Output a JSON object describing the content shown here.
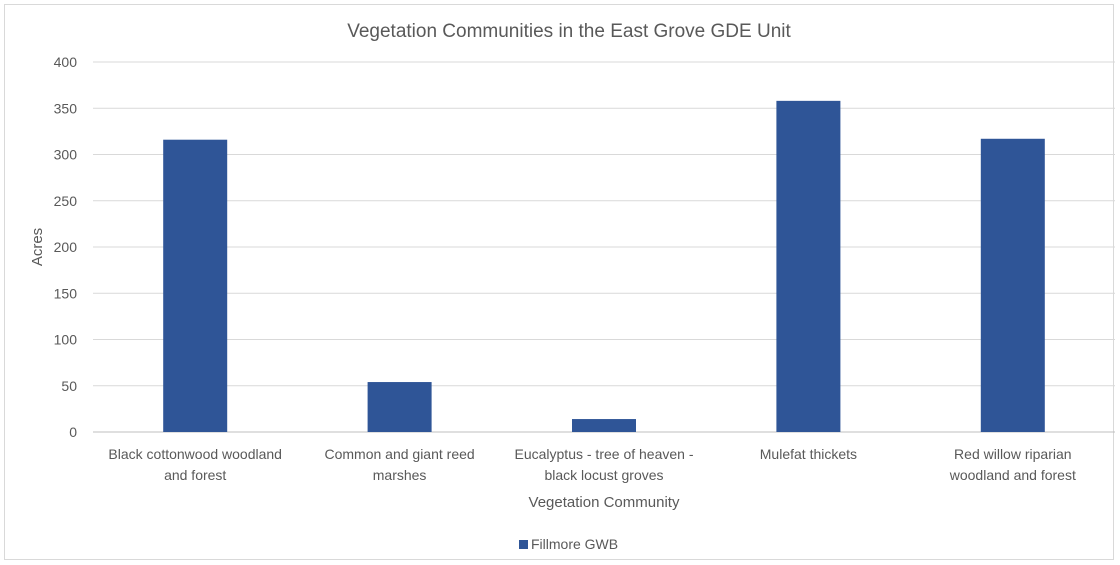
{
  "chart_data": {
    "type": "bar",
    "title": "Vegetation Communities in the East Grove GDE Unit",
    "xlabel": "Vegetation Community",
    "ylabel": "Acres",
    "ylim": [
      0,
      400
    ],
    "yticks": [
      0,
      50,
      100,
      150,
      200,
      250,
      300,
      350,
      400
    ],
    "categories": [
      [
        "Black cottonwood woodland",
        "and forest"
      ],
      [
        "Common and giant reed",
        "marshes"
      ],
      [
        "Eucalyptus - tree of heaven -",
        "black locust groves"
      ],
      [
        "Mulefat thickets"
      ],
      [
        "Red willow riparian",
        "woodland and forest"
      ]
    ],
    "series": [
      {
        "name": "Fillmore GWB",
        "color": "#2f5597",
        "values": [
          316,
          54,
          14,
          358,
          317
        ]
      }
    ],
    "grid": true,
    "legend_position": "bottom"
  }
}
